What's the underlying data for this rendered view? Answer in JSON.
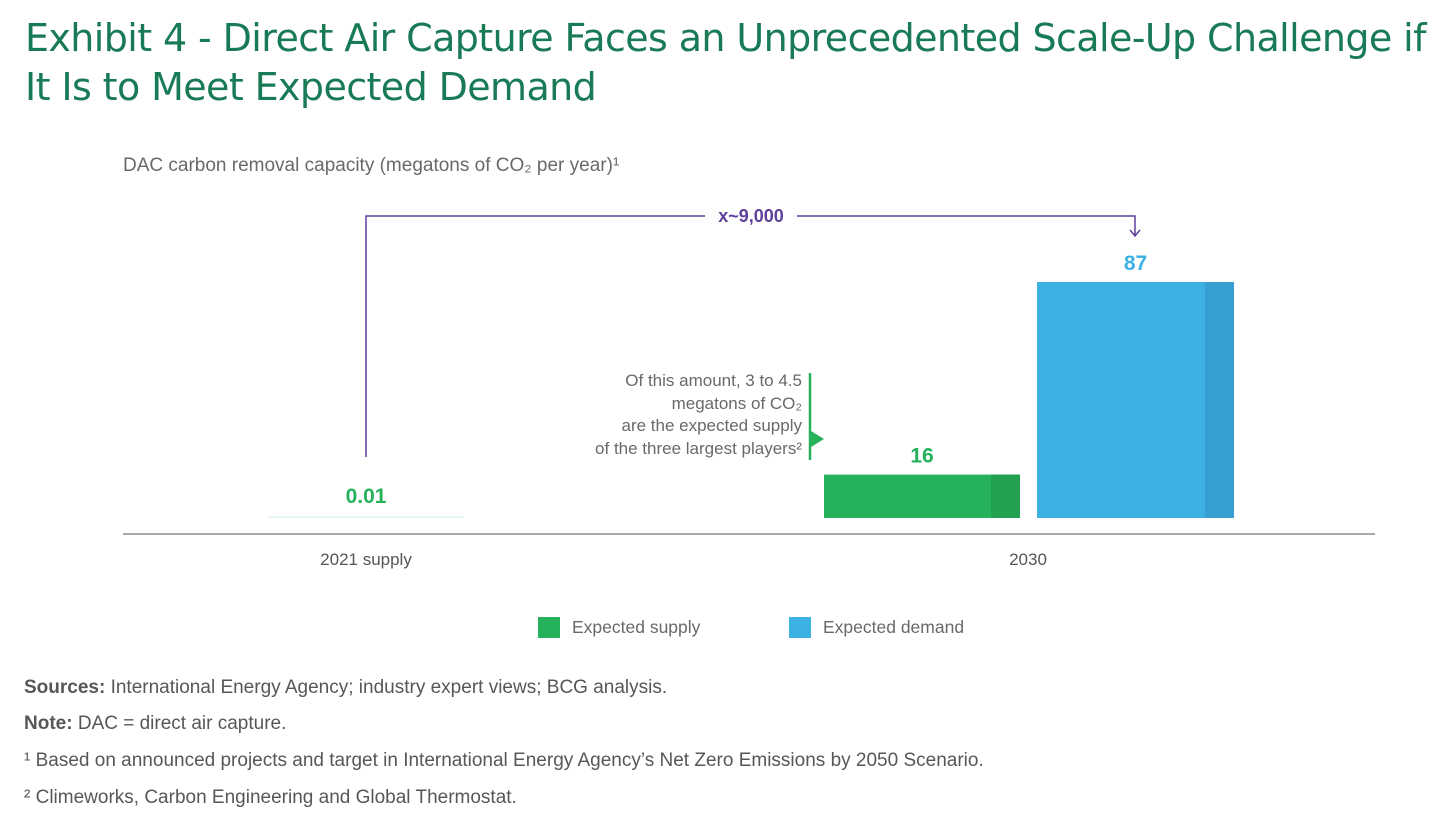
{
  "header": {
    "title": "Exhibit 4 - Direct Air Capture Faces an Unprecedented Scale-Up Challenge if\nIt Is to Meet Expected Demand"
  },
  "colors": {
    "title": "#197A56",
    "supply": "#25B25B",
    "supply_shade": "#22A150",
    "demand": "#3DB1E4",
    "demand_shade": "#369FD1",
    "bracket": "#5E3F99",
    "axis": "#8C8C8C",
    "text": "#696969"
  },
  "annotation": {
    "multiplier_label": "x~9,000",
    "note": "Of this amount, 3 to 4.5\nmegatons of CO₂\nare the expected supply\nof the three largest players²"
  },
  "chart_data": {
    "type": "bar",
    "title": "DAC carbon removal capacity (megatons of CO₂ per year)¹",
    "xlabel": "",
    "ylabel": "",
    "categories": [
      "2021 supply",
      "2030"
    ],
    "series": [
      {
        "name": "Expected supply",
        "values": [
          0.01,
          16
        ],
        "labels": [
          "0.01",
          "16"
        ]
      },
      {
        "name": "Expected demand",
        "values": [
          null,
          87
        ],
        "labels": [
          null,
          "87"
        ]
      }
    ],
    "ylim": [
      0,
      87
    ],
    "grid": false,
    "legend": "bottom-center",
    "legend_entries": [
      "Expected supply",
      "Expected demand"
    ]
  },
  "footer": {
    "sources_label": "Sources:",
    "sources_text": " International Energy Agency; industry expert views; BCG analysis.",
    "note_label": "Note:",
    "note_text": " DAC = direct air capture.",
    "footnote_1": "¹ Based on announced projects and target in International Energy Agency’s Net Zero Emissions by 2050 Scenario.",
    "footnote_2": "² Climeworks, Carbon Engineering and Global Thermostat."
  }
}
